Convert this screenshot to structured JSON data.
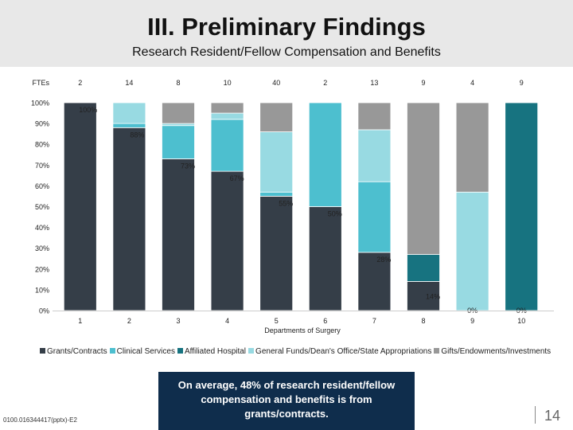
{
  "page": {
    "title": "III. Preliminary Findings",
    "subtitle": "Research Resident/Fellow Compensation and Benefits",
    "callout": "On average, 48% of research resident/fellow compensation and benefits is from grants/contracts.",
    "doc_id": "0100.016344417(pptx)-E2",
    "page_number": "14"
  },
  "chart_data": {
    "type": "bar",
    "stacked": true,
    "title": "Research Resident/Fellow Compensation and Benefits",
    "xlabel": "Departments of Surgery",
    "ylabel": "",
    "ylim": [
      0,
      100
    ],
    "yticks": [
      "0%",
      "10%",
      "20%",
      "30%",
      "40%",
      "50%",
      "60%",
      "70%",
      "80%",
      "90%",
      "100%"
    ],
    "fte_label": "FTEs",
    "ftes": [
      "2",
      "14",
      "8",
      "10",
      "40",
      "2",
      "13",
      "9",
      "4",
      "9"
    ],
    "categories": [
      "1",
      "2",
      "3",
      "4",
      "5",
      "6",
      "7",
      "8",
      "9",
      "10"
    ],
    "data_labels": [
      "100%",
      "88%",
      "73%",
      "67%",
      "55%",
      "50%",
      "28%",
      "14%",
      "0%",
      "0%"
    ],
    "series": [
      {
        "name": "Grants/Contracts",
        "color": "#353e48",
        "values": [
          100,
          88,
          73,
          67,
          55,
          50,
          28,
          14,
          0,
          0
        ]
      },
      {
        "name": "Clinical Services",
        "color": "#4dbfcf",
        "values": [
          0,
          2,
          16,
          25,
          2,
          50,
          34,
          0,
          0,
          0
        ]
      },
      {
        "name": "Affiliated Hospital",
        "color": "#177380",
        "values": [
          0,
          0,
          0,
          0,
          0,
          0,
          0,
          13,
          0,
          100
        ]
      },
      {
        "name": "General Funds/Dean's Office/State Appropriations",
        "color": "#98dae2",
        "values": [
          0,
          10,
          1,
          3,
          29,
          0,
          25,
          0,
          57,
          0
        ]
      },
      {
        "name": "Gifts/Endowments/Investments",
        "color": "#989898",
        "values": [
          0,
          0,
          10,
          5,
          14,
          0,
          13,
          73,
          43,
          0
        ]
      }
    ]
  }
}
